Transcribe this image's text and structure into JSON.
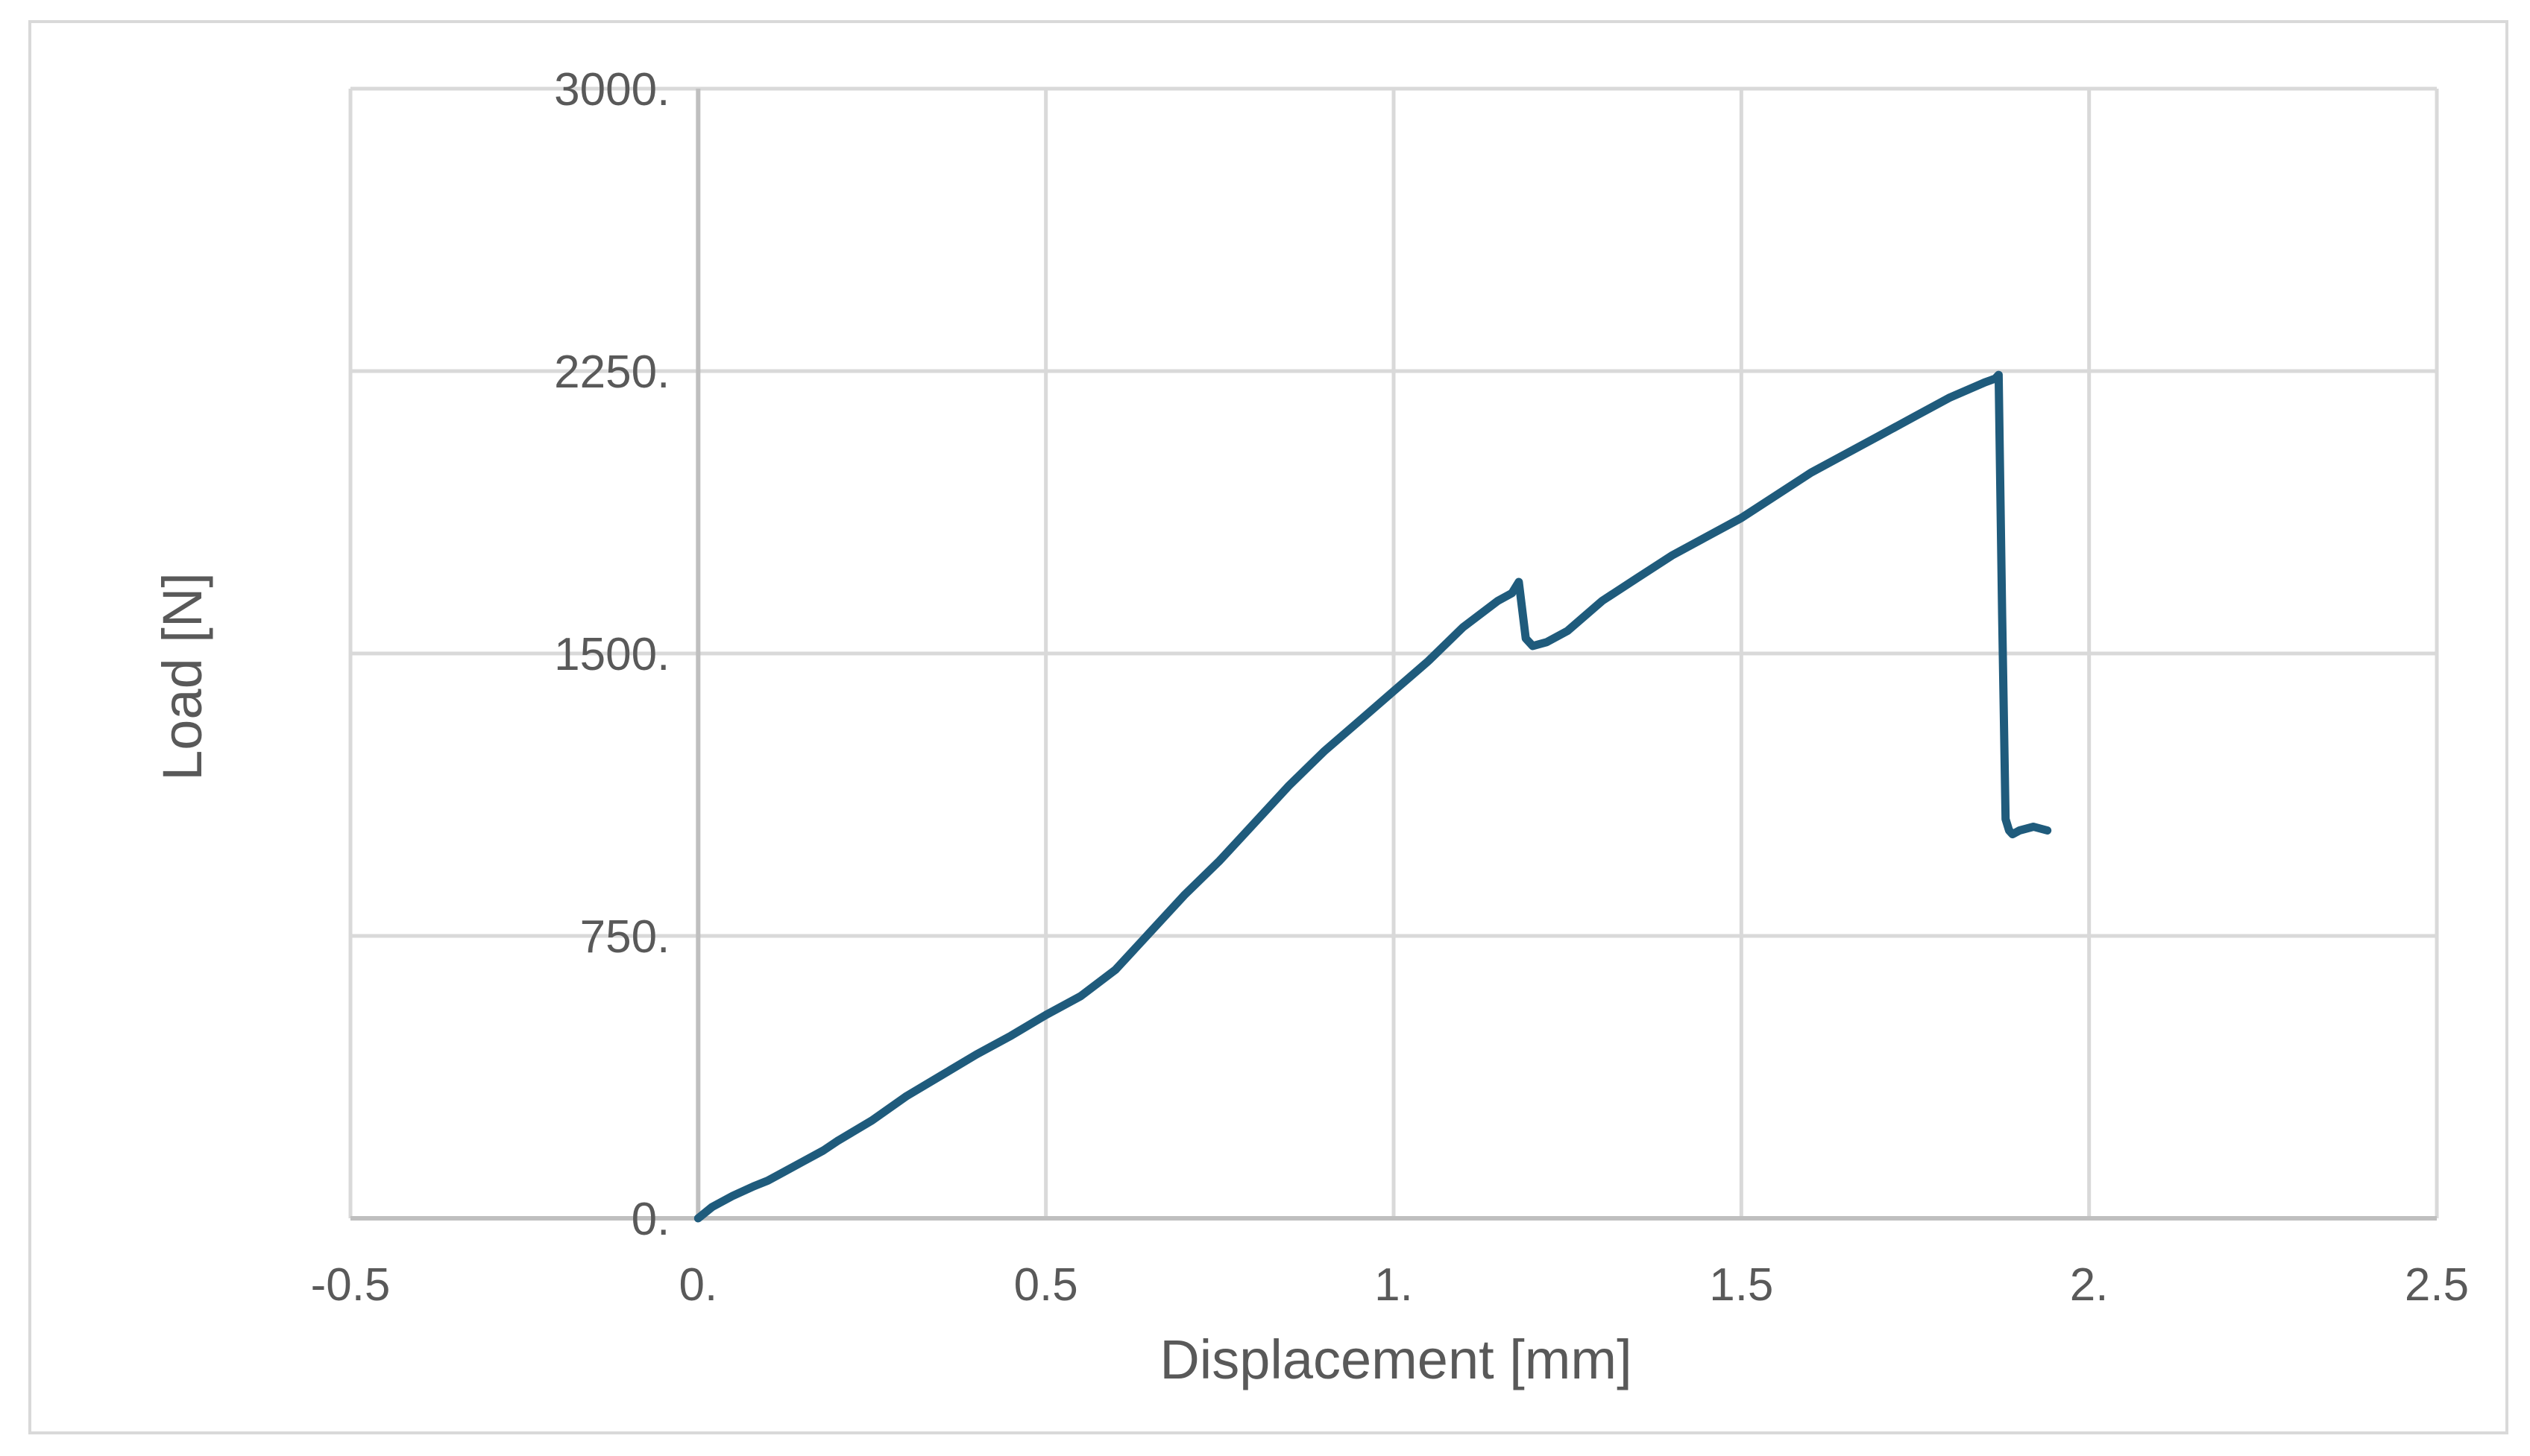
{
  "chart_data": {
    "type": "line",
    "title": "",
    "xlabel": "Displacement [mm]",
    "ylabel": "Load [N]",
    "xlim": [
      -0.5,
      2.5
    ],
    "ylim": [
      0,
      3000
    ],
    "x_ticks": [
      -0.5,
      0,
      0.5,
      1,
      1.5,
      2,
      2.5
    ],
    "x_tick_labels": [
      "-0.5",
      "0.",
      "0.5",
      "1.",
      "1.5",
      "2.",
      "2.5"
    ],
    "y_ticks": [
      0,
      750,
      1500,
      2250,
      3000
    ],
    "y_tick_labels": [
      "0.",
      "750.",
      "1500.",
      "2250.",
      "3000."
    ],
    "grid": true,
    "legend": "none",
    "series": [
      {
        "color": "#1f5b7c",
        "x": [
          0.0,
          0.02,
          0.05,
          0.08,
          0.1,
          0.12,
          0.15,
          0.18,
          0.2,
          0.25,
          0.3,
          0.35,
          0.4,
          0.45,
          0.5,
          0.55,
          0.6,
          0.65,
          0.7,
          0.75,
          0.8,
          0.85,
          0.9,
          0.95,
          1.0,
          1.05,
          1.1,
          1.15,
          1.17,
          1.18,
          1.19,
          1.2,
          1.22,
          1.25,
          1.3,
          1.35,
          1.4,
          1.45,
          1.5,
          1.55,
          1.6,
          1.65,
          1.7,
          1.75,
          1.8,
          1.85,
          1.865,
          1.87,
          1.875,
          1.88,
          1.885,
          1.89,
          1.9,
          1.92,
          1.94
        ],
        "y": [
          0,
          30,
          60,
          85,
          100,
          120,
          150,
          180,
          205,
          260,
          325,
          380,
          435,
          485,
          540,
          590,
          660,
          760,
          860,
          950,
          1050,
          1150,
          1240,
          1320,
          1400,
          1480,
          1570,
          1640,
          1660,
          1690,
          1540,
          1520,
          1530,
          1560,
          1640,
          1700,
          1760,
          1810,
          1860,
          1920,
          1980,
          2030,
          2080,
          2130,
          2180,
          2220,
          2230,
          2240,
          1600,
          1060,
          1030,
          1020,
          1030,
          1040,
          1030
        ]
      }
    ]
  }
}
